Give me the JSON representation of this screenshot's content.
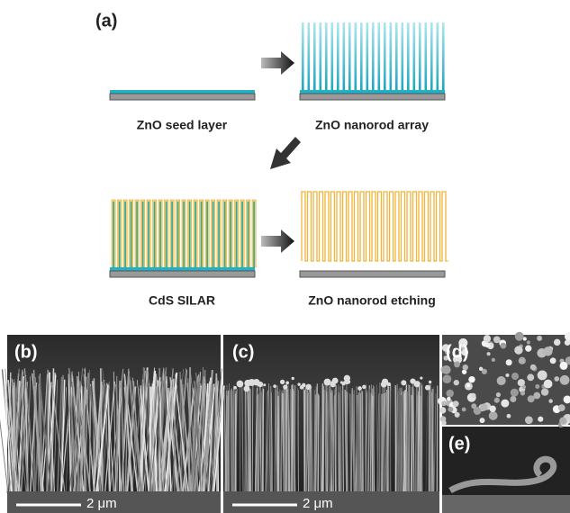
{
  "panel_a": {
    "label": "(a)",
    "steps": [
      "ZnO seed layer",
      "ZnO nanorod array",
      "CdS SILAR",
      "ZnO nanorod etching"
    ]
  },
  "panel_b": {
    "label": "(b)",
    "scale": "2 μm"
  },
  "panel_c": {
    "label": "(c)",
    "scale": "2 μm"
  },
  "panel_d": {
    "label": "(d)"
  },
  "panel_e": {
    "label": "(e)"
  }
}
